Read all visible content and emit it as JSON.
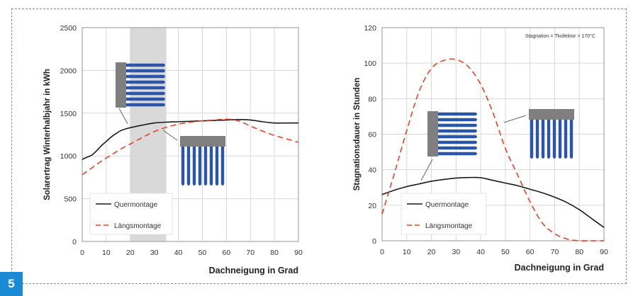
{
  "figure_number": "5",
  "colors": {
    "quer": "#1a1a1a",
    "laengs": "#e8402a",
    "tube": "#2b55a8",
    "manifold": "#7f7f7f",
    "highlight": "#d9d9d9",
    "grid": "#d8d8d8",
    "badge": "#1a8ad4"
  },
  "chart_data": [
    {
      "type": "line",
      "title": "",
      "xlabel": "Dachneigung in Grad",
      "ylabel": "Solarertrag Winterhalbjahr in kWh",
      "xlim": [
        0,
        90
      ],
      "ylim": [
        0,
        2500
      ],
      "x_ticks": [
        "0",
        "10",
        "20",
        "30",
        "40",
        "50",
        "60",
        "70",
        "80",
        "90"
      ],
      "y_ticks": [
        "0",
        "500",
        "1000",
        "1500",
        "2000",
        "2500"
      ],
      "grid": true,
      "legend_position": "bottom-left",
      "highlight_band": [
        20,
        35
      ],
      "x": [
        0,
        2,
        4,
        6,
        8,
        10,
        12,
        14,
        16,
        18,
        20,
        25,
        30,
        35,
        40,
        45,
        50,
        55,
        60,
        65,
        70,
        75,
        80,
        85,
        90
      ],
      "series": [
        {
          "name": "Quermontage",
          "style": "solid",
          "values": [
            960,
            985,
            1010,
            1060,
            1120,
            1170,
            1220,
            1260,
            1295,
            1315,
            1330,
            1360,
            1385,
            1395,
            1400,
            1405,
            1410,
            1415,
            1420,
            1425,
            1420,
            1400,
            1385,
            1385,
            1385
          ]
        },
        {
          "name": "Längsmontage",
          "style": "dashed",
          "values": [
            780,
            820,
            860,
            900,
            940,
            975,
            1010,
            1045,
            1080,
            1110,
            1140,
            1215,
            1285,
            1335,
            1370,
            1395,
            1410,
            1420,
            1430,
            1410,
            1350,
            1290,
            1240,
            1200,
            1160
          ]
        }
      ],
      "icons": [
        "collector-horizontal-tubes",
        "collector-vertical-tubes"
      ]
    },
    {
      "type": "line",
      "title": "",
      "annotation": "Stagnation = Tkollektor > 170°C",
      "xlabel": "Dachneigung in Grad",
      "ylabel": "Stagnationsdauer in Stunden",
      "xlim": [
        0,
        90
      ],
      "ylim": [
        0,
        120
      ],
      "x_ticks": [
        "0",
        "10",
        "20",
        "30",
        "40",
        "50",
        "60",
        "70",
        "80",
        "90"
      ],
      "y_ticks": [
        "0",
        "20",
        "40",
        "60",
        "80",
        "100",
        "120"
      ],
      "grid": true,
      "legend_position": "bottom-left",
      "x": [
        0,
        5,
        10,
        15,
        20,
        25,
        30,
        35,
        40,
        45,
        50,
        55,
        60,
        65,
        70,
        75,
        80,
        85,
        90
      ],
      "series": [
        {
          "name": "Quermontage",
          "style": "solid",
          "values": [
            26,
            28.5,
            30.5,
            32,
            33.5,
            34.5,
            35.3,
            35.6,
            35.5,
            34,
            32.5,
            31,
            29,
            27,
            24.5,
            21.5,
            17.5,
            12.5,
            7.5
          ]
        },
        {
          "name": "Längsmontage",
          "style": "dashed",
          "values": [
            15,
            38,
            62,
            84,
            97,
            101.5,
            102,
            98,
            88,
            72,
            52,
            37,
            22,
            10,
            4,
            1,
            0,
            0,
            0
          ]
        }
      ],
      "icons": [
        "collector-horizontal-tubes",
        "collector-vertical-tubes"
      ]
    }
  ]
}
